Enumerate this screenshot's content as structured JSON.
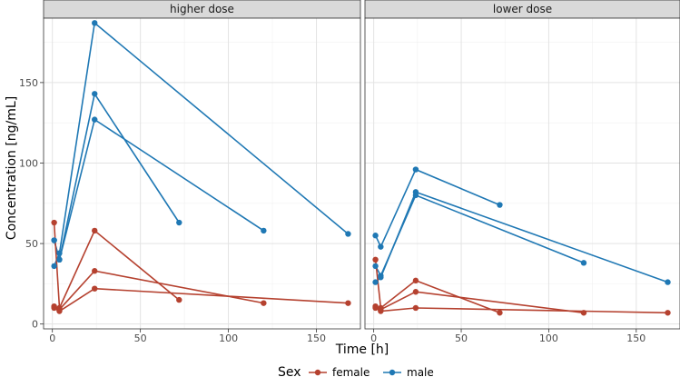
{
  "chart_data": {
    "type": "line",
    "xlabel": "Time [h]",
    "ylabel": "Concentration [ng/mL]",
    "xlim": [
      -5,
      175
    ],
    "ylim": [
      -3,
      190
    ],
    "x_ticks": [
      0,
      50,
      100,
      150
    ],
    "y_ticks": [
      0,
      50,
      100,
      150
    ],
    "legend": {
      "title": "Sex",
      "position": "bottom",
      "entries": [
        {
          "label": "female",
          "color": "#b5412f"
        },
        {
          "label": "male",
          "color": "#1f78b4"
        }
      ]
    },
    "facets": [
      {
        "label": "higher dose",
        "series": [
          {
            "sex": "male",
            "x": [
              1,
              4,
              24,
              168
            ],
            "y": [
              36,
              44,
              187,
              56
            ]
          },
          {
            "sex": "male",
            "x": [
              1,
              4,
              24,
              72
            ],
            "y": [
              52,
              40,
              143,
              63
            ]
          },
          {
            "sex": "male",
            "x": [
              1,
              4,
              24,
              120
            ],
            "y": [
              52,
              40,
              127,
              58
            ]
          },
          {
            "sex": "female",
            "x": [
              1,
              4,
              24,
              72
            ],
            "y": [
              63,
              10,
              58,
              15
            ]
          },
          {
            "sex": "female",
            "x": [
              1,
              4,
              24,
              120
            ],
            "y": [
              11,
              9,
              33,
              13
            ]
          },
          {
            "sex": "female",
            "x": [
              1,
              4,
              24,
              168
            ],
            "y": [
              10,
              8,
              22,
              13
            ]
          }
        ]
      },
      {
        "label": "lower dose",
        "series": [
          {
            "sex": "male",
            "x": [
              1,
              4,
              24,
              72
            ],
            "y": [
              55,
              48,
              96,
              74
            ]
          },
          {
            "sex": "male",
            "x": [
              1,
              4,
              24,
              120
            ],
            "y": [
              36,
              30,
              80,
              38
            ]
          },
          {
            "sex": "male",
            "x": [
              1,
              4,
              24,
              168
            ],
            "y": [
              26,
              29,
              82,
              26
            ]
          },
          {
            "sex": "female",
            "x": [
              1,
              4,
              24,
              72
            ],
            "y": [
              40,
              10,
              27,
              7
            ]
          },
          {
            "sex": "female",
            "x": [
              1,
              4,
              24,
              120
            ],
            "y": [
              11,
              9,
              20,
              7
            ]
          },
          {
            "sex": "female",
            "x": [
              1,
              4,
              24,
              168
            ],
            "y": [
              10,
              8,
              10,
              7
            ]
          }
        ]
      }
    ]
  }
}
